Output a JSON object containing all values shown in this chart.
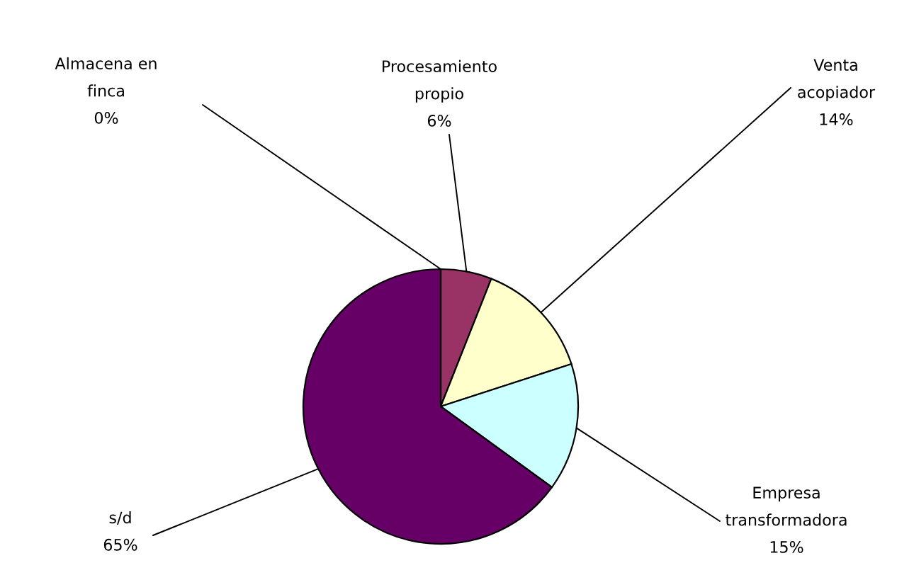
{
  "chart_data": {
    "type": "pie",
    "categories": [
      "Almacena en\nfinca",
      "Procesamiento\npropio",
      "Venta\nacopiador",
      "Empresa\ntransformadora",
      "s/d"
    ],
    "values": [
      0,
      6,
      14,
      15,
      65
    ],
    "value_labels": [
      "0%",
      "6%",
      "14%",
      "15%",
      "65%"
    ],
    "colors": [
      "#000080",
      "#993366",
      "#ffffcc",
      "#ccffff",
      "#660066"
    ],
    "legend": false
  }
}
